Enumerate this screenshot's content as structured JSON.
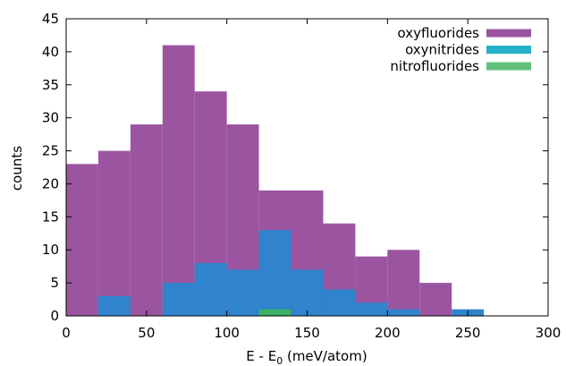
{
  "chart_data": {
    "type": "bar",
    "subtype": "histogram",
    "xlabel_main": "E - E",
    "xlabel_sub": "0",
    "xlabel_tail": " (meV/atom)",
    "ylabel": "counts",
    "xlim": [
      0,
      300
    ],
    "ylim": [
      0,
      45
    ],
    "bin_width": 20,
    "x_ticks": [
      "0",
      "50",
      "100",
      "150",
      "200",
      "250",
      "300"
    ],
    "y_ticks": [
      "0",
      "5",
      "10",
      "15",
      "20",
      "25",
      "30",
      "35",
      "40",
      "45"
    ],
    "legend_position": "top-right",
    "grid": false,
    "series": [
      {
        "name": "oxyfluorides",
        "color": "#9b55a0",
        "bins": [
          [
            0,
            23
          ],
          [
            20,
            25
          ],
          [
            40,
            29
          ],
          [
            60,
            41
          ],
          [
            80,
            34
          ],
          [
            100,
            29
          ],
          [
            120,
            19
          ],
          [
            140,
            19
          ],
          [
            160,
            14
          ],
          [
            180,
            9
          ],
          [
            200,
            10
          ],
          [
            220,
            5
          ]
        ]
      },
      {
        "name": "oxynitrides",
        "color": "#2f84cd",
        "legend_color": "#23b0c8",
        "bins": [
          [
            20,
            3
          ],
          [
            60,
            5
          ],
          [
            80,
            8
          ],
          [
            100,
            7
          ],
          [
            120,
            13
          ],
          [
            140,
            7
          ],
          [
            160,
            4
          ],
          [
            180,
            2
          ],
          [
            200,
            1
          ],
          [
            240,
            1
          ]
        ]
      },
      {
        "name": "nitrofluorides",
        "color": "#3bb064",
        "legend_color": "#60c07a",
        "bins": [
          [
            120,
            1
          ]
        ]
      }
    ]
  }
}
